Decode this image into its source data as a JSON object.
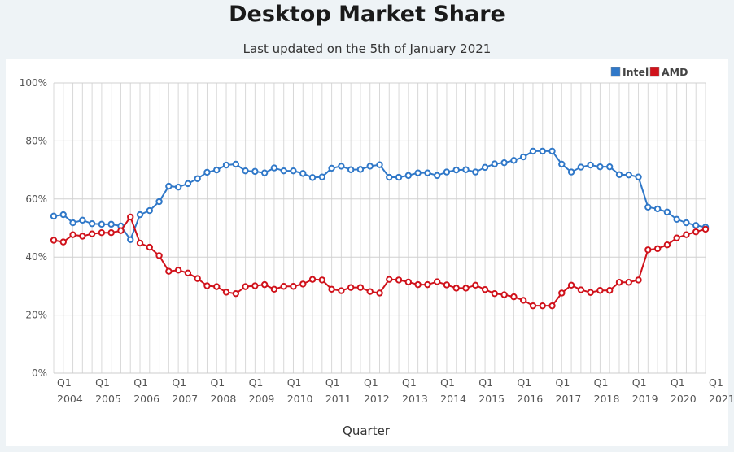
{
  "header": {
    "title": "Desktop Market Share",
    "subtitle": "Last updated on the 5th of January 2021"
  },
  "chart_data": {
    "type": "line",
    "title": "Desktop Market Share",
    "xlabel": "Quarter",
    "ylabel": "",
    "ylim": [
      0,
      100
    ],
    "yticks": [
      "0%",
      "20%",
      "40%",
      "60%",
      "80%",
      "100%"
    ],
    "x_start": "Q1 2004",
    "x_end": "Q1 2021",
    "xtick_labels": [
      {
        "q": "Q1",
        "year": "2004"
      },
      {
        "q": "Q1",
        "year": "2005"
      },
      {
        "q": "Q1",
        "year": "2006"
      },
      {
        "q": "Q1",
        "year": "2007"
      },
      {
        "q": "Q1",
        "year": "2008"
      },
      {
        "q": "Q1",
        "year": "2009"
      },
      {
        "q": "Q1",
        "year": "2010"
      },
      {
        "q": "Q1",
        "year": "2011"
      },
      {
        "q": "Q1",
        "year": "2012"
      },
      {
        "q": "Q1",
        "year": "2013"
      },
      {
        "q": "Q1",
        "year": "2014"
      },
      {
        "q": "Q1",
        "year": "2015"
      },
      {
        "q": "Q1",
        "year": "2016"
      },
      {
        "q": "Q1",
        "year": "2017"
      },
      {
        "q": "Q1",
        "year": "2018"
      },
      {
        "q": "Q1",
        "year": "2019"
      },
      {
        "q": "Q1",
        "year": "2020"
      },
      {
        "q": "Q1",
        "year": "2021"
      }
    ],
    "grid": true,
    "legend": "top-right",
    "series": [
      {
        "name": "Intel",
        "color": "#3078c8",
        "values": [
          54.1,
          54.6,
          51.8,
          52.7,
          51.5,
          51.3,
          51.3,
          50.7,
          46.0,
          54.6,
          56.0,
          59.1,
          64.4,
          64.1,
          65.3,
          67.0,
          69.2,
          70.0,
          71.7,
          72.0,
          69.7,
          69.5,
          69.0,
          70.7,
          69.7,
          69.7,
          68.8,
          67.4,
          67.6,
          70.6,
          71.3,
          70.1,
          70.2,
          71.3,
          71.8,
          67.5,
          67.5,
          68.1,
          69.0,
          69.0,
          68.1,
          69.3,
          70.0,
          70.1,
          69.3,
          70.9,
          72.1,
          72.5,
          73.3,
          74.5,
          76.5,
          76.5,
          76.5,
          72.0,
          69.3,
          71.0,
          71.7,
          71.1,
          71.1,
          68.4,
          68.3,
          67.6,
          57.2,
          56.6,
          55.5,
          53.0,
          51.8,
          50.9,
          50.3
        ]
      },
      {
        "name": "AMD",
        "color": "#d0121b",
        "values": [
          45.8,
          45.2,
          47.7,
          47.2,
          48.0,
          48.4,
          48.4,
          49.1,
          53.8,
          44.8,
          43.4,
          40.5,
          35.1,
          35.5,
          34.5,
          32.6,
          30.1,
          29.8,
          27.9,
          27.4,
          29.8,
          30.1,
          30.5,
          28.9,
          29.9,
          29.9,
          30.7,
          32.3,
          32.1,
          28.9,
          28.4,
          29.5,
          29.5,
          28.1,
          27.6,
          32.3,
          32.1,
          31.4,
          30.5,
          30.5,
          31.5,
          30.4,
          29.3,
          29.3,
          30.3,
          28.8,
          27.4,
          27.0,
          26.3,
          25.1,
          23.2,
          23.2,
          23.2,
          27.6,
          30.3,
          28.7,
          27.8,
          28.5,
          28.5,
          31.3,
          31.3,
          32.1,
          42.5,
          42.9,
          44.2,
          46.6,
          47.7,
          48.7,
          49.6
        ]
      }
    ]
  }
}
